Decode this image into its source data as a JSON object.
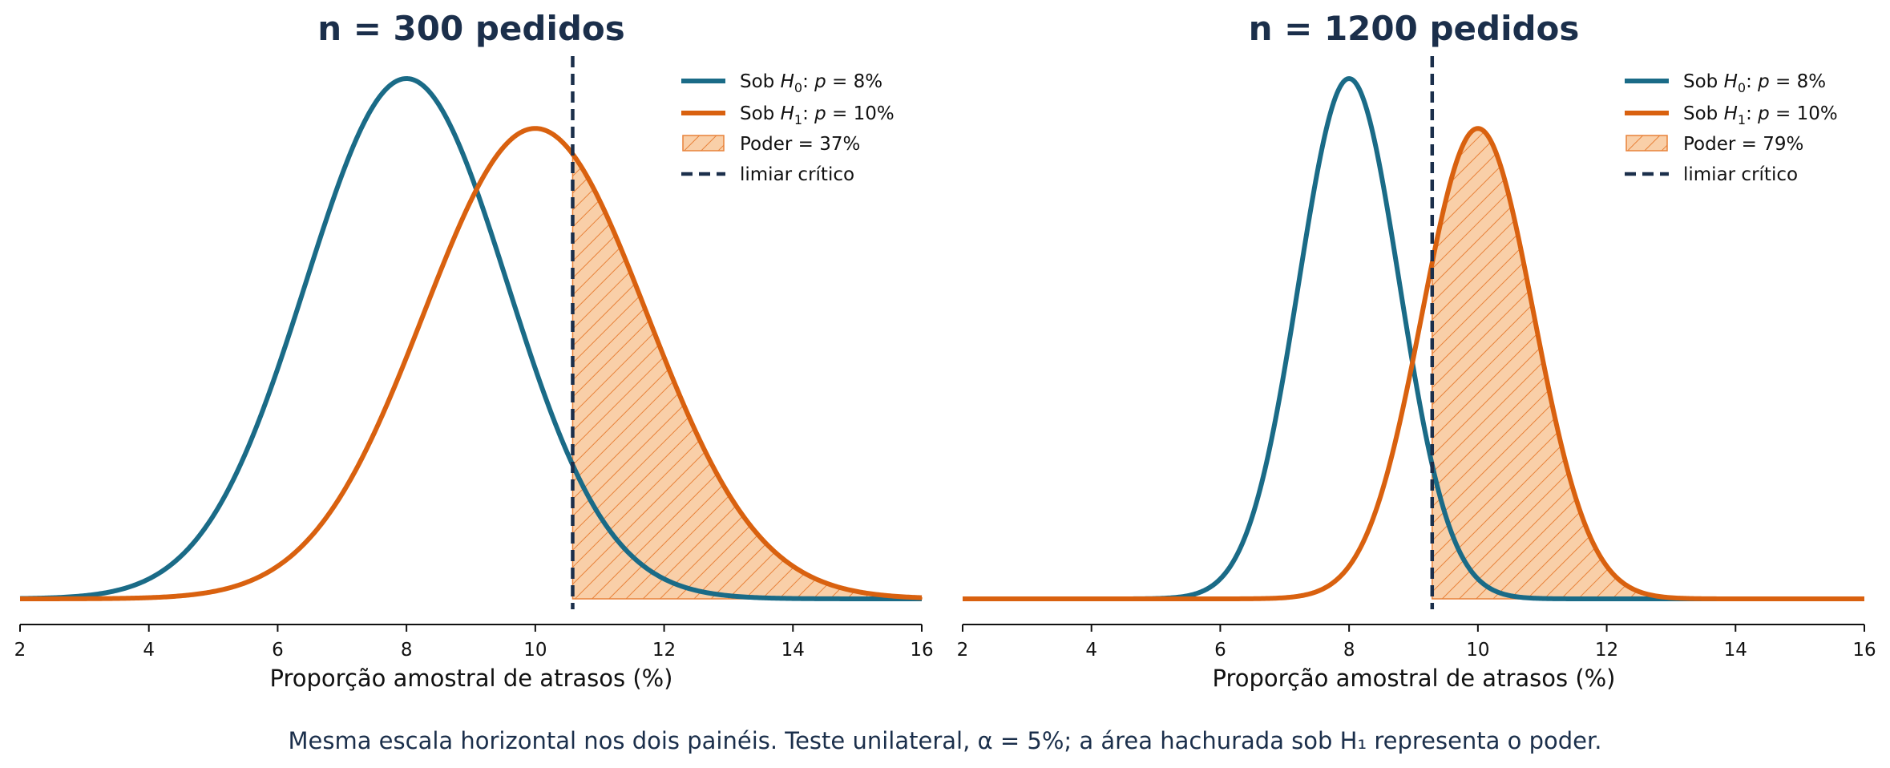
{
  "colors": {
    "h0": "#1a6b87",
    "h1": "#d9610f",
    "fill": "#f9cfa8",
    "hatch": "#e8823a",
    "critical": "#1b2f4b",
    "title": "#1b2f4b"
  },
  "caption": "Mesma escala horizontal nos dois painéis. Teste unilateral, α = 5%; a área hachurada sob H₁ representa o poder.",
  "chart_data": [
    {
      "type": "line",
      "title": "n = 300 pedidos",
      "xlabel": "Proporção amostral de atrasos (%)",
      "xlim": [
        2,
        16
      ],
      "xticks": [
        "2",
        "4",
        "6",
        "8",
        "10",
        "12",
        "14",
        "16"
      ],
      "n": 300,
      "critical_value": 10.58,
      "series": [
        {
          "name": "Sob H0: p = 8%",
          "mean": 8,
          "sd": 1.566
        },
        {
          "name": "Sob H1: p = 10%",
          "mean": 10,
          "sd": 1.732
        }
      ],
      "legend": {
        "position": "top-right",
        "h0": {
          "prefix": "Sob ",
          "var": "H",
          "sub": "0",
          "mid": ": ",
          "p": "p",
          "rest": " = 8%"
        },
        "h1": {
          "prefix": "Sob ",
          "var": "H",
          "sub": "1",
          "mid": ": ",
          "p": "p",
          "rest": " = 10%"
        },
        "power": "Poder = 37%",
        "critical": "limiar crítico"
      }
    },
    {
      "type": "line",
      "title": "n = 1200 pedidos",
      "xlabel": "Proporção amostral de atrasos (%)",
      "xlim": [
        2,
        16
      ],
      "xticks": [
        "2",
        "4",
        "6",
        "8",
        "10",
        "12",
        "14",
        "16"
      ],
      "n": 1200,
      "critical_value": 9.29,
      "series": [
        {
          "name": "Sob H0: p = 8%",
          "mean": 8,
          "sd": 0.783
        },
        {
          "name": "Sob H1: p = 10%",
          "mean": 10,
          "sd": 0.866
        }
      ],
      "legend": {
        "position": "top-right",
        "h0": {
          "prefix": "Sob ",
          "var": "H",
          "sub": "0",
          "mid": ": ",
          "p": "p",
          "rest": " = 8%"
        },
        "h1": {
          "prefix": "Sob ",
          "var": "H",
          "sub": "1",
          "mid": ": ",
          "p": "p",
          "rest": " = 10%"
        },
        "power": "Poder = 79%",
        "critical": "limiar crítico"
      }
    }
  ]
}
